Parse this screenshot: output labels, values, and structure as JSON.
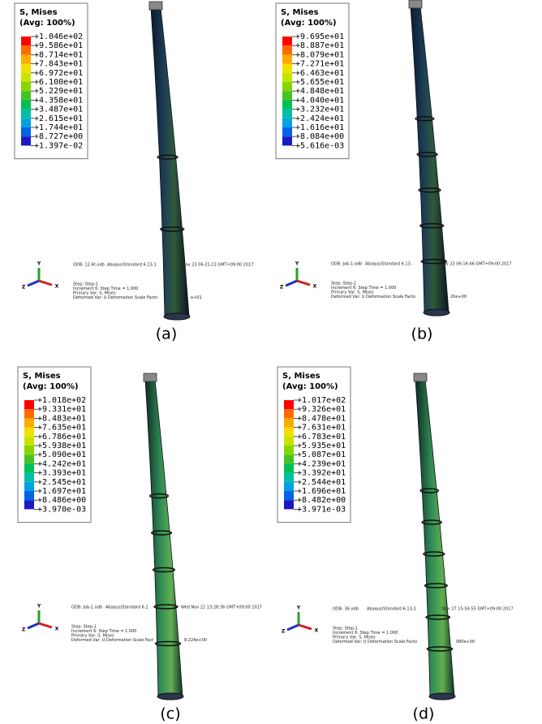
{
  "panels": [
    {
      "caption": "(a)",
      "legend": {
        "title": "S, Mises",
        "subtitle": "(Avg: 100%)",
        "values": [
          "+1.046e+02",
          "+9.586e+01",
          "+8.714e+01",
          "+7.843e+01",
          "+6.972e+01",
          "+6.100e+01",
          "+5.229e+01",
          "+4.358e+01",
          "+3.487e+01",
          "+2.615e+01",
          "+1.744e+01",
          "+8.727e+00",
          "+1.397e-02"
        ]
      },
      "info": {
        "odb": "ODB: 12-6t.odb",
        "solver": "Abaqus/Standard 6.13-1",
        "date": "Nov 23 06:31:23 GMT+09:00 2017",
        "step": "Step: Step-1",
        "increment": "Increment    6: Step Time =    1.000",
        "primary": "Primary Var: S, Mises",
        "deformed": "Deformed Var: U   Deformation Scale Facto",
        "scale": "e+01"
      },
      "triad": {
        "y": "Y",
        "z": "Z",
        "x": "X"
      }
    },
    {
      "caption": "(b)",
      "legend": {
        "title": "S, Mises",
        "subtitle": "(Avg: 100%)",
        "values": [
          "+9.695e+01",
          "+8.887e+01",
          "+8.079e+01",
          "+7.271e+01",
          "+6.463e+01",
          "+5.655e+01",
          "+4.848e+01",
          "+4.040e+01",
          "+3.232e+01",
          "+2.424e+01",
          "+1.616e+01",
          "+8.084e+00",
          "+5.616e-03"
        ]
      },
      "info": {
        "odb": "ODB: Job-1.odb",
        "solver": "Abaqus/Standard 6.13-",
        "date": "Nov 23 06:16:46 GMT+09:00 2017",
        "step": "Step: Step-1",
        "increment": "Increment    6: Step Time =    1.000",
        "primary": "Primary Var: S, Mises",
        "deformed": "Deformed Var: U   Deformation Scale Facto",
        "scale": "20e+00"
      },
      "triad": {
        "y": "Y",
        "z": "Z",
        "x": "X"
      }
    },
    {
      "caption": "(c)",
      "legend": {
        "title": "S, Mises",
        "subtitle": "(Avg: 100%)",
        "values": [
          "+1.018e+02",
          "+9.331e+01",
          "+8.483e+01",
          "+7.635e+01",
          "+6.786e+01",
          "+5.938e+01",
          "+5.090e+01",
          "+4.242e+01",
          "+3.393e+01",
          "+2.545e+01",
          "+1.697e+01",
          "+8.486e+00",
          "+3.970e-03"
        ]
      },
      "info": {
        "odb": "ODB: Job-1.odb",
        "solver": "Abaqus/Standard 6.1",
        "date": "Wed Nov 22 13:28:36 GMT+09:00 2017",
        "step": "Step: Step-1",
        "increment": "Increment    6: Step Time =    1.000",
        "primary": "Primary Var: S, Mises",
        "deformed": "Deformed Var: U   Deformation Scale Fact",
        "scale": "8.224e+00"
      },
      "triad": {
        "y": "Y",
        "z": "Z",
        "x": "X"
      }
    },
    {
      "caption": "(d)",
      "legend": {
        "title": "S, Mises",
        "subtitle": "(Avg: 100%)",
        "values": [
          "+1.017e+02",
          "+9.326e+01",
          "+8.478e+01",
          "+7.631e+01",
          "+6.783e+01",
          "+5.935e+01",
          "+5.087e+01",
          "+4.239e+01",
          "+3.392e+01",
          "+2.544e+01",
          "+1.696e+01",
          "+8.482e+00",
          "+3.971e-03"
        ]
      },
      "info": {
        "odb": "ODB: 36.odb",
        "solver": "Abaqus/Standard 6.13-1",
        "date": "Nov 27 15:54:55 GMT+09:00 2017",
        "step": "Step: Step-1",
        "increment": "Increment    6: Step Time =    1.000",
        "primary": "Primary Var: S, Mises",
        "deformed": "Deformed Var: U   Deformation Scale Facto",
        "scale": "080e+00"
      },
      "triad": {
        "y": "Y",
        "z": "Z",
        "x": "X"
      }
    }
  ]
}
